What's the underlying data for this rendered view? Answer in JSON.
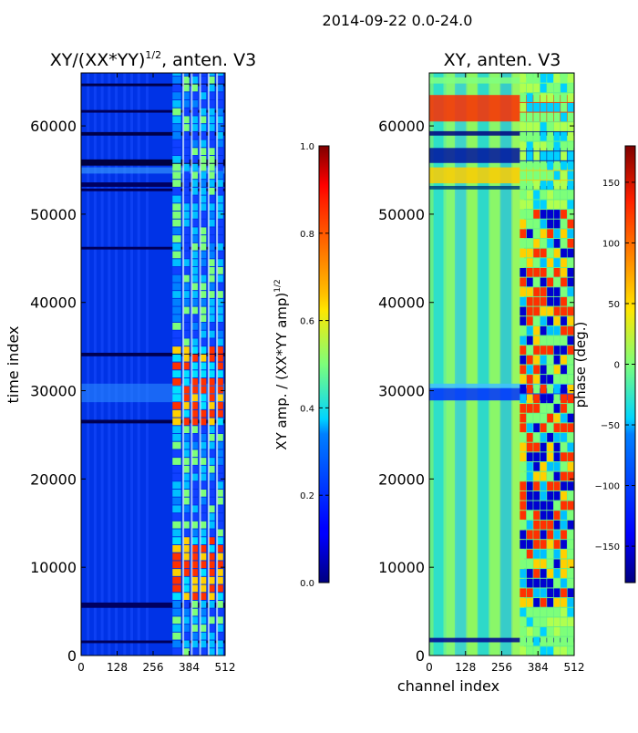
{
  "chart_data": {
    "type": "heatmap",
    "suptitle": "2014-09-22 0.0-24.0",
    "panels": [
      {
        "id": "amp",
        "title_main": "XY/(XX*YY)",
        "title_exp": "1/2",
        "title_suffix": ", anten. V3",
        "xlabel": "",
        "ylabel": "time index",
        "xlim": [
          0,
          512
        ],
        "ylim": [
          0,
          66000
        ],
        "xticks": [
          0,
          128,
          256,
          384,
          512
        ],
        "yticks": [
          0,
          10000,
          20000,
          30000,
          40000,
          50000,
          60000
        ],
        "colorbar": {
          "label_main": "XY amp. / (XX*YY amp)",
          "label_exp": "1/2",
          "min": 0.0,
          "max": 1.0,
          "ticks": [
            "0.0",
            "0.2",
            "0.4",
            "0.6",
            "0.8",
            "1.0"
          ],
          "tick_values": [
            0.0,
            0.2,
            0.4,
            0.6,
            0.8,
            1.0
          ]
        }
      },
      {
        "id": "phase",
        "title_main": "XY, anten. V3",
        "xlabel": "channel index",
        "ylabel": "",
        "xlim": [
          0,
          512
        ],
        "ylim": [
          0,
          66000
        ],
        "xticks": [
          0,
          128,
          256,
          384,
          512
        ],
        "yticks": [
          0,
          10000,
          20000,
          30000,
          40000,
          50000,
          60000
        ],
        "colorbar": {
          "label_main": "phase (deg.)",
          "min": -180,
          "max": 180,
          "ticks": [
            "150",
            "100",
            "50",
            "0",
            "−50",
            "−100",
            "−150"
          ],
          "tick_values": [
            150,
            100,
            50,
            0,
            -50,
            -100,
            -150
          ]
        }
      }
    ],
    "notes": "Dynamic spectrum; dark horizontal flagged bands near time index 5500, 26500, 34000, 53000, 56000; bright RFI/ripple features concentrated in channels ~320-480."
  }
}
